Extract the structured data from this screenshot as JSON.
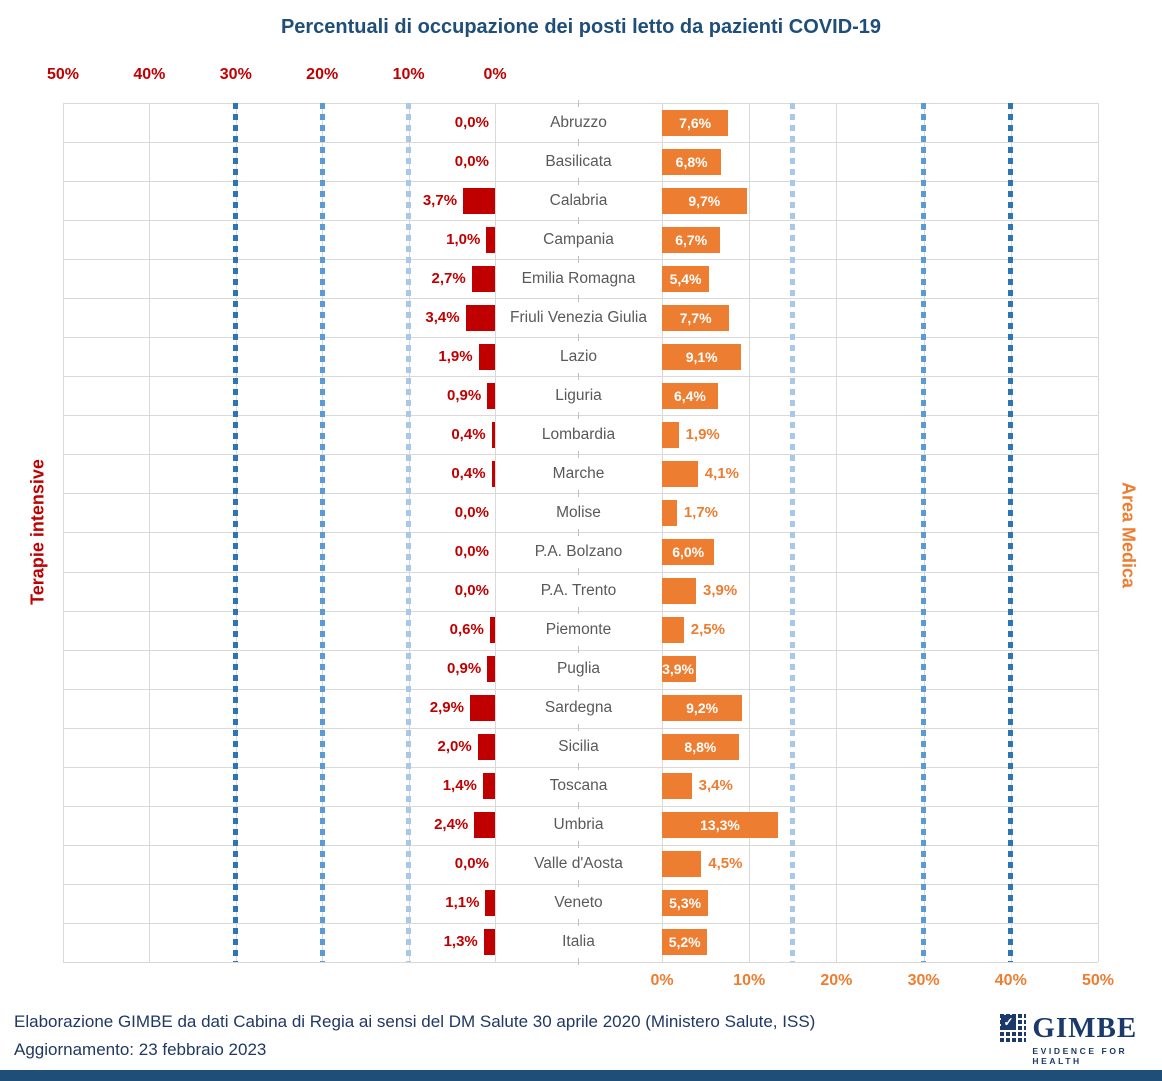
{
  "title": "Percentuali di occupazione dei posti letto da pazienti COVID-19",
  "footer": {
    "line1": "Elaborazione GIMBE da dati Cabina di Regia ai sensi del DM Salute 30 aprile 2020 (Ministero Salute, ISS)",
    "line2": "Aggiornamento: 23 febbraio 2023"
  },
  "logo": {
    "name": "GIMBE",
    "tagline": "EVIDENCE FOR HEALTH",
    "check": "✓",
    "color": "#1B3A6B"
  },
  "colors": {
    "title_navy": "#1F4E79",
    "terapie_red": "#C00000",
    "area_orange": "#ED7D31",
    "region_gray": "#595959",
    "gridline": "#D9D9D9",
    "threshold_light": "#A9C7E7",
    "threshold_medium": "#5B9BD5",
    "threshold_dark": "#2E75B6",
    "bottom_strip": "#1F4E79"
  },
  "chart_data": {
    "type": "bar",
    "orientation": "butterfly-horizontal",
    "title": "Percentuali di occupazione dei posti letto da pazienti COVID-19",
    "xlim_left": [
      50,
      0
    ],
    "xlim_right": [
      0,
      50
    ],
    "left_axis_ticks": [
      "50%",
      "40%",
      "30%",
      "20%",
      "10%",
      "0%"
    ],
    "right_axis_ticks": [
      "0%",
      "10%",
      "20%",
      "30%",
      "40%",
      "50%"
    ],
    "left_series_label": "Terapie intensive",
    "right_series_label": "Area Medica",
    "grid": true,
    "categories": [
      "Abruzzo",
      "Basilicata",
      "Calabria",
      "Campania",
      "Emilia Romagna",
      "Friuli Venezia Giulia",
      "Lazio",
      "Liguria",
      "Lombardia",
      "Marche",
      "Molise",
      "P.A. Bolzano",
      "P.A. Trento",
      "Piemonte",
      "Puglia",
      "Sardegna",
      "Sicilia",
      "Toscana",
      "Umbria",
      "Valle d'Aosta",
      "Veneto",
      "Italia"
    ],
    "series": [
      {
        "name": "Terapie intensive",
        "side": "left",
        "color": "#C00000",
        "values": [
          0.0,
          0.0,
          3.7,
          1.0,
          2.7,
          3.4,
          1.9,
          0.9,
          0.4,
          0.4,
          0.0,
          0.0,
          0.0,
          0.6,
          0.9,
          2.9,
          2.0,
          1.4,
          2.4,
          0.0,
          1.1,
          1.3
        ],
        "labels": [
          "0,0%",
          "0,0%",
          "3,7%",
          "1,0%",
          "2,7%",
          "3,4%",
          "1,9%",
          "0,9%",
          "0,4%",
          "0,4%",
          "0,0%",
          "0,0%",
          "0,0%",
          "0,6%",
          "0,9%",
          "2,9%",
          "2,0%",
          "1,4%",
          "2,4%",
          "0,0%",
          "1,1%",
          "1,3%"
        ]
      },
      {
        "name": "Area Medica",
        "side": "right",
        "color": "#ED7D31",
        "values": [
          7.6,
          6.8,
          9.7,
          6.7,
          5.4,
          7.7,
          9.1,
          6.4,
          1.9,
          4.1,
          1.7,
          6.0,
          3.9,
          2.5,
          3.9,
          9.2,
          8.8,
          3.4,
          13.3,
          4.5,
          5.3,
          5.2
        ],
        "labels": [
          "7,6%",
          "6,8%",
          "9,7%",
          "6,7%",
          "5,4%",
          "7,7%",
          "9,1%",
          "6,4%",
          "1,9%",
          "4,1%",
          "1,7%",
          "6,0%",
          "3,9%",
          "2,5%",
          "3,9%",
          "9,2%",
          "8,8%",
          "3,4%",
          "13,3%",
          "4,5%",
          "5,3%",
          "5,2%"
        ],
        "label_placement": [
          "inside",
          "inside",
          "inside",
          "inside",
          "inside",
          "inside",
          "inside",
          "inside",
          "outside",
          "outside",
          "outside",
          "inside",
          "outside",
          "outside",
          "inside-clip",
          "inside",
          "inside",
          "outside",
          "inside",
          "outside",
          "inside",
          "inside"
        ]
      }
    ],
    "threshold_lines": {
      "left": [
        {
          "pct": 10,
          "shade": "light"
        },
        {
          "pct": 20,
          "shade": "medium"
        },
        {
          "pct": 30,
          "shade": "dark"
        }
      ],
      "right": [
        {
          "pct": 15,
          "shade": "light"
        },
        {
          "pct": 30,
          "shade": "medium"
        },
        {
          "pct": 40,
          "shade": "dark"
        }
      ]
    }
  }
}
